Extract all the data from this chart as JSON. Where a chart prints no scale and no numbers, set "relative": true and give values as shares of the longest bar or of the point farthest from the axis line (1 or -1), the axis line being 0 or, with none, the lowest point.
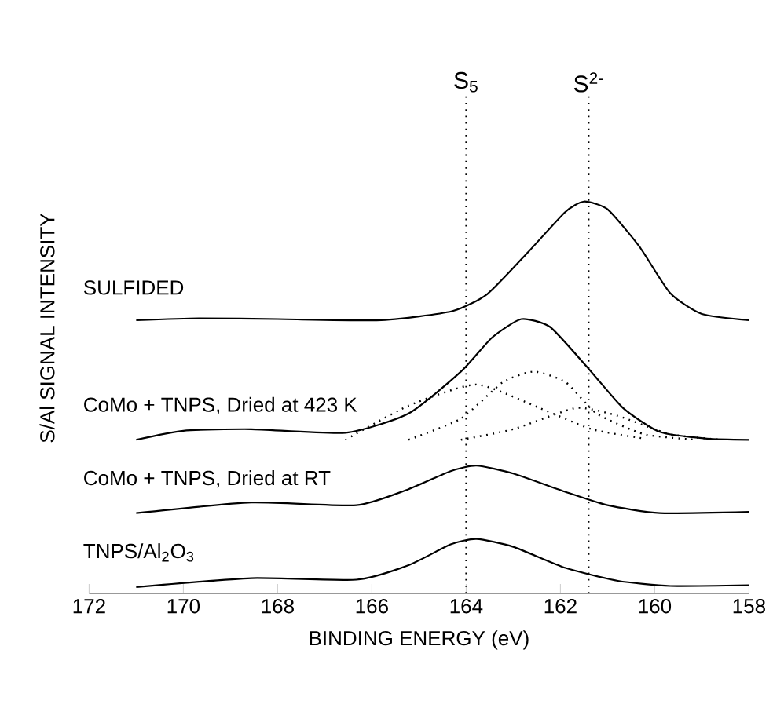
{
  "chart_data": {
    "type": "line",
    "relative": true,
    "xlabel": "BINDING ENERGY (eV)",
    "ylabel": "S/Al SIGNAL INTENSITY",
    "xlim": [
      172,
      158
    ],
    "xticks": [
      172,
      170,
      168,
      166,
      164,
      162,
      160,
      158
    ],
    "series": [
      {
        "name": "SULFIDED",
        "color": "#000000",
        "x": [
          171.0,
          169.67,
          168.0,
          165.8,
          164.3,
          163.55,
          162.67,
          161.9,
          161.5,
          161.0,
          160.33,
          159.67,
          159.0,
          158.0
        ],
        "values": [
          0.697,
          0.702,
          0.7,
          0.697,
          0.72,
          0.764,
          0.873,
          0.973,
          1.0,
          0.98,
          0.886,
          0.766,
          0.713,
          0.697
        ]
      },
      {
        "name": "CoMo + TNPS, Dried at 423 K",
        "color": "#000000",
        "x": [
          171.0,
          170.0,
          168.56,
          166.56,
          165.22,
          164.11,
          163.45,
          162.83,
          162.22,
          161.45,
          160.67,
          159.89,
          158.89,
          158.0
        ],
        "values": [
          0.392,
          0.415,
          0.419,
          0.41,
          0.459,
          0.566,
          0.653,
          0.7,
          0.68,
          0.58,
          0.473,
          0.412,
          0.395,
          0.392
        ]
      },
      {
        "color": "#000000",
        "line_style": "dotted",
        "x": [
          166.56,
          165.22,
          163.78,
          162.44,
          161.34,
          160.22
        ],
        "values": [
          0.392,
          0.479,
          0.533,
          0.473,
          0.419,
          0.395
        ]
      },
      {
        "color": "#000000",
        "line_style": "dotted",
        "x": [
          165.22,
          164.11,
          163.22,
          162.56,
          161.89,
          161.23,
          160.22,
          159.11
        ],
        "values": [
          0.392,
          0.446,
          0.539,
          0.566,
          0.539,
          0.459,
          0.406,
          0.392
        ]
      },
      {
        "color": "#000000",
        "line_style": "dotted",
        "x": [
          164.11,
          163.0,
          161.67,
          160.78,
          159.67,
          158.56
        ],
        "values": [
          0.392,
          0.419,
          0.473,
          0.453,
          0.406,
          0.392
        ]
      },
      {
        "name": "CoMo + TNPS, Dried at RT",
        "color": "#000000",
        "x": [
          171.0,
          168.56,
          166.33,
          165.22,
          164.33,
          163.78,
          163.0,
          161.89,
          161.0,
          159.89,
          158.0
        ],
        "values": [
          0.205,
          0.232,
          0.225,
          0.266,
          0.312,
          0.326,
          0.306,
          0.259,
          0.225,
          0.205,
          0.208
        ]
      },
      {
        "name": "TNPS/Al$_{2}$O$_{3}$",
        "color": "#000000",
        "x": [
          171.0,
          168.56,
          166.33,
          165.22,
          164.33,
          163.78,
          163.0,
          161.89,
          160.78,
          159.67,
          158.0
        ],
        "values": [
          0.016,
          0.039,
          0.035,
          0.072,
          0.125,
          0.139,
          0.119,
          0.065,
          0.032,
          0.019,
          0.021
        ]
      }
    ],
    "ref_lines": [
      {
        "axis": "x",
        "value": 164.0,
        "label": "S$_{5}$",
        "line_style": "dotted"
      },
      {
        "axis": "x",
        "value": 161.4,
        "label": "S$^{2-}$",
        "line_style": "dotted"
      }
    ]
  }
}
